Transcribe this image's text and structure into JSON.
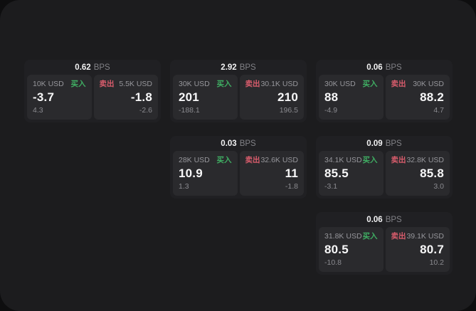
{
  "labels": {
    "bps_unit": "BPS",
    "buy": "买入",
    "sell": "卖出"
  },
  "colors": {
    "buy_green": "#3fae63",
    "sell_red": "#d85c6c",
    "panel_bg": "#1c1c1e",
    "card_bg": "#202023",
    "tile_bg": "#2a2a2d"
  },
  "cards": [
    {
      "bps": "0.62",
      "buy": {
        "amount": "10K USD",
        "price": "-3.7",
        "delta": "4.3"
      },
      "sell": {
        "amount": "5.5K USD",
        "price": "-1.8",
        "delta": "-2.6"
      }
    },
    {
      "bps": "2.92",
      "buy": {
        "amount": "30K USD",
        "price": "201",
        "delta": "-188.1"
      },
      "sell": {
        "amount": "30.1K USD",
        "price": "210",
        "delta": "196.5"
      }
    },
    {
      "bps": "0.06",
      "buy": {
        "amount": "30K USD",
        "price": "88",
        "delta": "-4.9"
      },
      "sell": {
        "amount": "30K USD",
        "price": "88.2",
        "delta": "4.7"
      }
    },
    {
      "bps": "0.03",
      "buy": {
        "amount": "28K USD",
        "price": "10.9",
        "delta": "1.3"
      },
      "sell": {
        "amount": "32.6K USD",
        "price": "11",
        "delta": "-1.8"
      }
    },
    {
      "bps": "0.09",
      "buy": {
        "amount": "34.1K USD",
        "price": "85.5",
        "delta": "-3.1"
      },
      "sell": {
        "amount": "32.8K USD",
        "price": "85.8",
        "delta": "3.0"
      }
    },
    {
      "bps": "0.06",
      "buy": {
        "amount": "31.8K USD",
        "price": "80.5",
        "delta": "-10.8"
      },
      "sell": {
        "amount": "39.1K USD",
        "price": "80.7",
        "delta": "10.2"
      }
    }
  ]
}
